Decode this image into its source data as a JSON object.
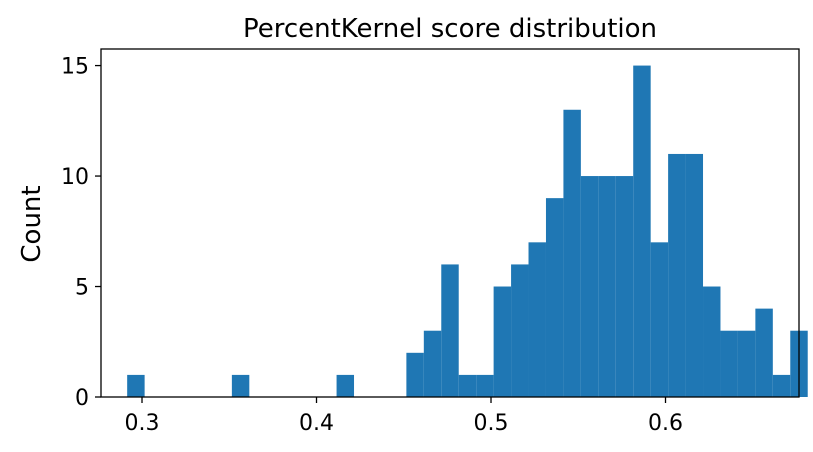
{
  "chart_data": {
    "type": "bar",
    "title": "PercentKernel score distribution",
    "xlabel": "",
    "ylabel": "Count",
    "xlim": [
      0.2765,
      0.6765
    ],
    "ylim": [
      0,
      15.75
    ],
    "x_ticks": [
      0.3,
      0.4,
      0.5,
      0.6
    ],
    "x_tick_labels": [
      "0.3",
      "0.4",
      "0.5",
      "0.6"
    ],
    "y_ticks": [
      0,
      5,
      10,
      15
    ],
    "y_tick_labels": [
      "0",
      "5",
      "10",
      "15"
    ],
    "bin_start": 0.2915,
    "bin_width": 0.01,
    "counts": [
      1,
      0,
      0,
      0,
      0,
      0,
      1,
      0,
      0,
      0,
      0,
      0,
      1,
      0,
      0,
      0,
      2,
      3,
      6,
      1,
      1,
      5,
      6,
      7,
      9,
      13,
      10,
      10,
      10,
      15,
      7,
      11,
      11,
      5,
      3,
      3,
      4,
      1,
      3
    ],
    "grid": false,
    "color": "#1f77b4"
  }
}
